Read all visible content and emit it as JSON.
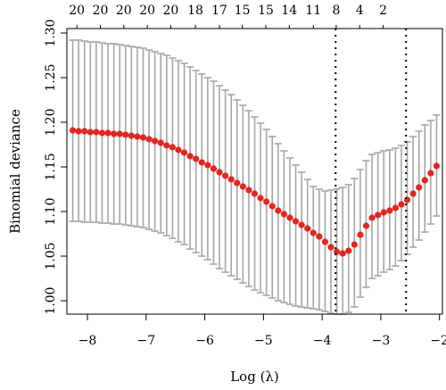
{
  "chart_data": {
    "type": "scatter",
    "title": "",
    "xlabel": "Log (λ)",
    "ylabel": "Binomial deviance",
    "xlim": [
      -8.35,
      -1.95
    ],
    "ylim": [
      0.985,
      1.305
    ],
    "x_ticks": [
      -8,
      -7,
      -6,
      -5,
      -4,
      -3,
      -2
    ],
    "y_ticks": [
      1.0,
      1.05,
      1.1,
      1.15,
      1.2,
      1.25,
      1.3
    ],
    "top_ticks": [
      {
        "x": -8.18,
        "label": "20"
      },
      {
        "x": -7.78,
        "label": "20"
      },
      {
        "x": -7.38,
        "label": "20"
      },
      {
        "x": -6.98,
        "label": "20"
      },
      {
        "x": -6.58,
        "label": "20"
      },
      {
        "x": -6.16,
        "label": "18"
      },
      {
        "x": -5.75,
        "label": "17"
      },
      {
        "x": -5.36,
        "label": "15"
      },
      {
        "x": -4.96,
        "label": "15"
      },
      {
        "x": -4.56,
        "label": "14"
      },
      {
        "x": -4.15,
        "label": "11"
      },
      {
        "x": -3.76,
        "label": "8"
      },
      {
        "x": -3.36,
        "label": "4"
      },
      {
        "x": -2.96,
        "label": "2"
      }
    ],
    "vlines": [
      -3.77,
      -2.57
    ],
    "point_color": "#e8231e",
    "errorbar_color": "#a6a6a6",
    "series": [
      {
        "x": [
          -8.25,
          -8.15,
          -8.05,
          -7.95,
          -7.85,
          -7.75,
          -7.65,
          -7.55,
          -7.45,
          -7.35,
          -7.25,
          -7.15,
          -7.05,
          -6.95,
          -6.85,
          -6.75,
          -6.65,
          -6.55,
          -6.45,
          -6.35,
          -6.25,
          -6.15,
          -6.05,
          -5.95,
          -5.85,
          -5.75,
          -5.65,
          -5.55,
          -5.45,
          -5.35,
          -5.25,
          -5.15,
          -5.05,
          -4.95,
          -4.85,
          -4.75,
          -4.65,
          -4.55,
          -4.45,
          -4.35,
          -4.25,
          -4.15,
          -4.05,
          -3.95,
          -3.85,
          -3.75,
          -3.65,
          -3.55,
          -3.45,
          -3.35,
          -3.25,
          -3.15,
          -3.05,
          -2.95,
          -2.85,
          -2.75,
          -2.65,
          -2.55,
          -2.45,
          -2.35,
          -2.25,
          -2.15,
          -2.05
        ],
        "y": [
          1.191,
          1.19,
          1.19,
          1.189,
          1.189,
          1.188,
          1.188,
          1.187,
          1.187,
          1.186,
          1.185,
          1.184,
          1.183,
          1.181,
          1.179,
          1.177,
          1.174,
          1.172,
          1.169,
          1.166,
          1.162,
          1.159,
          1.155,
          1.152,
          1.148,
          1.144,
          1.14,
          1.136,
          1.132,
          1.128,
          1.124,
          1.12,
          1.115,
          1.111,
          1.106,
          1.101,
          1.097,
          1.093,
          1.089,
          1.085,
          1.081,
          1.076,
          1.072,
          1.066,
          1.06,
          1.055,
          1.053,
          1.056,
          1.063,
          1.074,
          1.084,
          1.093,
          1.096,
          1.099,
          1.101,
          1.104,
          1.108,
          1.113,
          1.12,
          1.127,
          1.135,
          1.143,
          1.151
        ],
        "lower": [
          1.089,
          1.089,
          1.088,
          1.088,
          1.088,
          1.087,
          1.087,
          1.086,
          1.086,
          1.085,
          1.084,
          1.083,
          1.082,
          1.08,
          1.078,
          1.076,
          1.073,
          1.07,
          1.066,
          1.063,
          1.058,
          1.054,
          1.05,
          1.046,
          1.041,
          1.036,
          1.032,
          1.028,
          1.024,
          1.02,
          1.016,
          1.012,
          1.009,
          1.006,
          1.003,
          1.0,
          0.998,
          0.996,
          0.994,
          0.993,
          0.992,
          0.991,
          0.99,
          0.988,
          0.986,
          0.985,
          0.985,
          0.987,
          0.993,
          1.004,
          1.015,
          1.025,
          1.028,
          1.032,
          1.035,
          1.039,
          1.045,
          1.052,
          1.06,
          1.068,
          1.077,
          1.086,
          1.095
        ],
        "upper": [
          1.292,
          1.292,
          1.291,
          1.29,
          1.29,
          1.289,
          1.288,
          1.288,
          1.287,
          1.286,
          1.285,
          1.284,
          1.283,
          1.281,
          1.279,
          1.277,
          1.275,
          1.272,
          1.269,
          1.266,
          1.262,
          1.258,
          1.254,
          1.25,
          1.246,
          1.241,
          1.236,
          1.231,
          1.225,
          1.219,
          1.213,
          1.206,
          1.199,
          1.192,
          1.184,
          1.176,
          1.168,
          1.16,
          1.152,
          1.144,
          1.136,
          1.128,
          1.125,
          1.123,
          1.124,
          1.125,
          1.127,
          1.13,
          1.137,
          1.147,
          1.157,
          1.164,
          1.166,
          1.168,
          1.169,
          1.171,
          1.174,
          1.178,
          1.184,
          1.19,
          1.197,
          1.202,
          1.208
        ]
      }
    ]
  }
}
